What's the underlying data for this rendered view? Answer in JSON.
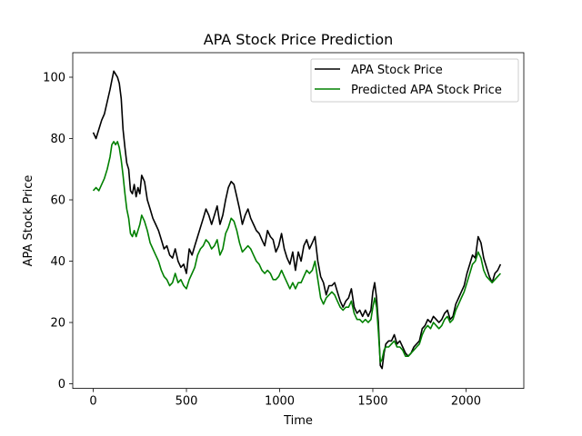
{
  "chart_data": {
    "type": "line",
    "title": "APA Stock Price Prediction",
    "xlabel": "Time",
    "ylabel": "APA Stock Price",
    "xlim": [
      -110,
      2310
    ],
    "ylim": [
      -1.5,
      108
    ],
    "xticks": [
      0,
      500,
      1000,
      1500,
      2000
    ],
    "yticks": [
      0,
      20,
      40,
      60,
      80,
      100
    ],
    "grid": false,
    "legend_position": "upper right",
    "series": [
      {
        "name": "APA Stock Price",
        "color": "#000000",
        "x": [
          0,
          15,
          30,
          45,
          60,
          75,
          90,
          100,
          110,
          120,
          130,
          140,
          150,
          160,
          170,
          180,
          190,
          200,
          210,
          220,
          230,
          240,
          250,
          260,
          275,
          290,
          305,
          320,
          335,
          350,
          365,
          380,
          395,
          410,
          425,
          440,
          455,
          470,
          485,
          500,
          515,
          530,
          545,
          560,
          575,
          590,
          605,
          620,
          635,
          650,
          665,
          680,
          695,
          710,
          725,
          740,
          755,
          770,
          785,
          800,
          815,
          830,
          845,
          860,
          875,
          890,
          905,
          920,
          935,
          950,
          965,
          980,
          995,
          1010,
          1025,
          1040,
          1055,
          1070,
          1085,
          1100,
          1115,
          1130,
          1145,
          1160,
          1175,
          1190,
          1205,
          1220,
          1235,
          1250,
          1265,
          1280,
          1295,
          1310,
          1325,
          1340,
          1355,
          1370,
          1385,
          1400,
          1415,
          1430,
          1445,
          1460,
          1475,
          1490,
          1500,
          1510,
          1520,
          1530,
          1540,
          1550,
          1560,
          1570,
          1585,
          1600,
          1615,
          1630,
          1645,
          1660,
          1675,
          1690,
          1705,
          1720,
          1735,
          1750,
          1765,
          1780,
          1795,
          1810,
          1825,
          1840,
          1855,
          1870,
          1885,
          1900,
          1915,
          1930,
          1945,
          1960,
          1975,
          1990,
          2005,
          2020,
          2035,
          2050,
          2065,
          2080,
          2095,
          2110,
          2125,
          2140,
          2155,
          2170,
          2185
        ],
        "y": [
          82,
          80,
          83,
          86,
          88,
          92,
          96,
          99,
          102,
          101,
          100,
          98,
          93,
          83,
          77,
          72,
          70,
          63,
          62,
          65,
          61,
          64,
          62,
          68,
          66,
          60,
          57,
          54,
          52,
          50,
          47,
          44,
          45,
          42,
          41,
          44,
          40,
          38,
          39,
          36,
          44,
          42,
          45,
          48,
          51,
          54,
          57,
          55,
          52,
          55,
          58,
          52,
          55,
          60,
          64,
          66,
          65,
          61,
          57,
          52,
          55,
          57,
          54,
          52,
          50,
          49,
          47,
          45,
          50,
          48,
          47,
          43,
          45,
          49,
          44,
          41,
          39,
          43,
          37,
          43,
          40,
          45,
          47,
          44,
          46,
          48,
          40,
          35,
          33,
          29,
          32,
          32,
          33,
          30,
          27,
          25,
          27,
          28,
          31,
          25,
          23,
          24,
          22,
          24,
          22,
          24,
          30,
          33,
          28,
          20,
          6,
          5,
          10,
          13,
          14,
          14,
          16,
          13,
          14,
          12,
          10,
          9,
          10,
          12,
          13,
          14,
          18,
          19,
          21,
          20,
          22,
          21,
          20,
          21,
          23,
          24,
          21,
          22,
          26,
          28,
          30,
          32,
          36,
          39,
          42,
          41,
          48,
          46,
          41,
          38,
          35,
          33,
          36,
          37,
          39
        ]
      },
      {
        "name": "Predicted APA Stock Price",
        "color": "#008000",
        "x": [
          0,
          15,
          30,
          45,
          60,
          75,
          90,
          100,
          110,
          120,
          130,
          140,
          150,
          160,
          170,
          180,
          190,
          200,
          210,
          220,
          230,
          240,
          250,
          260,
          275,
          290,
          305,
          320,
          335,
          350,
          365,
          380,
          395,
          410,
          425,
          440,
          455,
          470,
          485,
          500,
          515,
          530,
          545,
          560,
          575,
          590,
          605,
          620,
          635,
          650,
          665,
          680,
          695,
          710,
          725,
          740,
          755,
          770,
          785,
          800,
          815,
          830,
          845,
          860,
          875,
          890,
          905,
          920,
          935,
          950,
          965,
          980,
          995,
          1010,
          1025,
          1040,
          1055,
          1070,
          1085,
          1100,
          1115,
          1130,
          1145,
          1160,
          1175,
          1190,
          1205,
          1220,
          1235,
          1250,
          1265,
          1280,
          1295,
          1310,
          1325,
          1340,
          1355,
          1370,
          1385,
          1400,
          1415,
          1430,
          1445,
          1460,
          1475,
          1490,
          1500,
          1510,
          1520,
          1530,
          1540,
          1550,
          1560,
          1570,
          1585,
          1600,
          1615,
          1630,
          1645,
          1660,
          1675,
          1690,
          1705,
          1720,
          1735,
          1750,
          1765,
          1780,
          1795,
          1810,
          1825,
          1840,
          1855,
          1870,
          1885,
          1900,
          1915,
          1930,
          1945,
          1960,
          1975,
          1990,
          2005,
          2020,
          2035,
          2050,
          2065,
          2080,
          2095,
          2110,
          2125,
          2140,
          2155,
          2170,
          2185
        ],
        "y": [
          63,
          64,
          63,
          65,
          67,
          70,
          74,
          78,
          79,
          78,
          79,
          77,
          73,
          68,
          62,
          57,
          54,
          49,
          48,
          50,
          48,
          50,
          52,
          55,
          53,
          50,
          46,
          44,
          42,
          40,
          37,
          35,
          34,
          32,
          33,
          36,
          33,
          34,
          32,
          31,
          34,
          36,
          38,
          42,
          44,
          45,
          47,
          46,
          44,
          45,
          47,
          42,
          44,
          49,
          51,
          54,
          53,
          50,
          46,
          43,
          44,
          45,
          44,
          42,
          40,
          39,
          37,
          36,
          37,
          36,
          34,
          34,
          35,
          37,
          35,
          33,
          31,
          33,
          31,
          33,
          33,
          35,
          37,
          36,
          37,
          40,
          34,
          28,
          26,
          28,
          29,
          30,
          29,
          27,
          25,
          24,
          25,
          25,
          27,
          23,
          21,
          21,
          20,
          21,
          20,
          21,
          25,
          28,
          25,
          17,
          7,
          8,
          11,
          12,
          12,
          13,
          14,
          12,
          12,
          11,
          9,
          9,
          10,
          11,
          12,
          13,
          16,
          18,
          19,
          18,
          20,
          19,
          18,
          19,
          21,
          22,
          20,
          21,
          24,
          26,
          28,
          30,
          33,
          36,
          39,
          40,
          43,
          41,
          37,
          35,
          34,
          33,
          34,
          35,
          36
        ]
      }
    ]
  }
}
